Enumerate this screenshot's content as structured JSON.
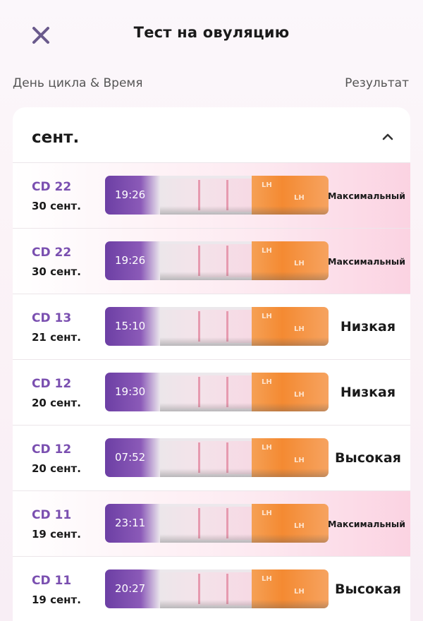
{
  "header": {
    "title": "Тест на овуляцию",
    "close_icon": "close-icon"
  },
  "columns": {
    "left": "День цикла & Время",
    "right": "Результат"
  },
  "month": {
    "label": "сент.",
    "chevron_icon": "chevron-up-icon"
  },
  "colors": {
    "accent": "#7a4fb0",
    "strip_orange": "#f48a32",
    "max_highlight": "#fbd3e2"
  },
  "strip_text": "LH",
  "entries": [
    {
      "cd": "CD 22",
      "date": "30 сент.",
      "time": "19:26",
      "result": "Максимальный",
      "level": "max"
    },
    {
      "cd": "CD 22",
      "date": "30 сент.",
      "time": "19:26",
      "result": "Максимальный",
      "level": "max"
    },
    {
      "cd": "CD 13",
      "date": "21 сент.",
      "time": "15:10",
      "result": "Низкая",
      "level": "low"
    },
    {
      "cd": "CD 12",
      "date": "20 сент.",
      "time": "19:30",
      "result": "Низкая",
      "level": "low"
    },
    {
      "cd": "CD 12",
      "date": "20 сент.",
      "time": "07:52",
      "result": "Высокая",
      "level": "high"
    },
    {
      "cd": "CD 11",
      "date": "19 сент.",
      "time": "23:11",
      "result": "Максимальный",
      "level": "max"
    },
    {
      "cd": "CD 11",
      "date": "19 сент.",
      "time": "20:27",
      "result": "Высокая",
      "level": "high"
    }
  ]
}
